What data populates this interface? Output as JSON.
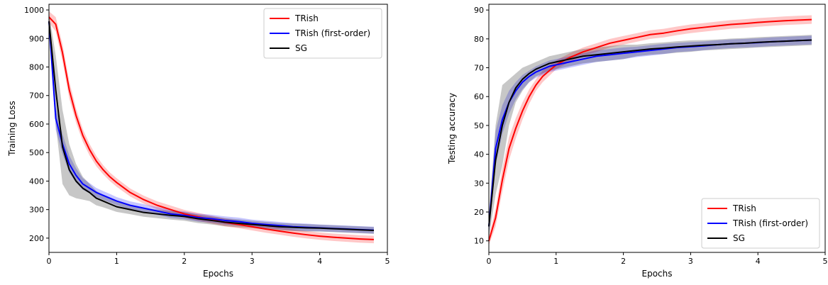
{
  "chart_data": [
    {
      "type": "line",
      "xlabel": "Epochs",
      "ylabel": "Training Loss",
      "xlim": [
        0,
        5
      ],
      "ylim": [
        150,
        1020
      ],
      "xticks": [
        0,
        1,
        2,
        3,
        4,
        5
      ],
      "yticks": [
        200,
        300,
        400,
        500,
        600,
        700,
        800,
        900,
        1000
      ],
      "grid": false,
      "legend": "top-right",
      "series": [
        {
          "name": "TRish",
          "color": "#ff0000",
          "shade": true,
          "x": [
            0,
            0.1,
            0.2,
            0.3,
            0.4,
            0.5,
            0.6,
            0.7,
            0.8,
            0.9,
            1.0,
            1.2,
            1.4,
            1.6,
            1.8,
            2.0,
            2.2,
            2.4,
            2.6,
            2.8,
            3.0,
            3.2,
            3.4,
            3.6,
            3.8,
            4.0,
            4.2,
            4.4,
            4.6,
            4.8
          ],
          "y": [
            975,
            950,
            850,
            720,
            630,
            560,
            510,
            470,
            440,
            415,
            395,
            360,
            335,
            315,
            300,
            285,
            275,
            265,
            255,
            248,
            240,
            232,
            225,
            218,
            212,
            207,
            203,
            200,
            197,
            195
          ],
          "band": [
            20,
            25,
            30,
            30,
            25,
            22,
            20,
            18,
            16,
            15,
            15,
            14,
            14,
            14,
            14,
            14,
            14,
            14,
            14,
            13,
            13,
            13,
            13,
            13,
            13,
            13,
            13,
            13,
            13,
            13
          ]
        },
        {
          "name": "TRish (first-order)",
          "color": "#0000ff",
          "shade": true,
          "x": [
            0,
            0.1,
            0.2,
            0.3,
            0.4,
            0.5,
            0.6,
            0.7,
            0.8,
            0.9,
            1.0,
            1.2,
            1.4,
            1.6,
            1.8,
            2.0,
            2.2,
            2.4,
            2.6,
            2.8,
            3.0,
            3.2,
            3.4,
            3.6,
            3.8,
            4.0,
            4.2,
            4.4,
            4.6,
            4.8
          ],
          "y": [
            960,
            620,
            530,
            460,
            420,
            390,
            375,
            360,
            350,
            340,
            330,
            315,
            305,
            295,
            285,
            280,
            272,
            268,
            262,
            258,
            252,
            248,
            244,
            240,
            238,
            236,
            234,
            232,
            230,
            228
          ],
          "band": [
            20,
            40,
            35,
            30,
            25,
            20,
            18,
            16,
            15,
            15,
            14,
            14,
            14,
            14,
            14,
            14,
            14,
            14,
            14,
            14,
            13,
            13,
            13,
            13,
            13,
            12,
            12,
            12,
            12,
            12
          ]
        },
        {
          "name": "SG",
          "color": "#000000",
          "shade": true,
          "x": [
            0,
            0.1,
            0.2,
            0.3,
            0.4,
            0.5,
            0.6,
            0.7,
            0.8,
            0.9,
            1.0,
            1.2,
            1.4,
            1.6,
            1.8,
            2.0,
            2.2,
            2.4,
            2.6,
            2.8,
            3.0,
            3.2,
            3.4,
            3.6,
            3.8,
            4.0,
            4.2,
            4.4,
            4.6,
            4.8
          ],
          "y": [
            960,
            720,
            520,
            440,
            400,
            375,
            360,
            340,
            330,
            320,
            310,
            300,
            290,
            285,
            280,
            276,
            268,
            262,
            256,
            252,
            248,
            244,
            240,
            238,
            236,
            235,
            233,
            231,
            229,
            227
          ],
          "band": [
            30,
            120,
            130,
            90,
            60,
            40,
            30,
            25,
            22,
            20,
            18,
            16,
            15,
            15,
            15,
            15,
            15,
            14,
            14,
            14,
            13,
            13,
            13,
            13,
            13,
            12,
            12,
            12,
            12,
            12
          ]
        }
      ]
    },
    {
      "type": "line",
      "xlabel": "Epochs",
      "ylabel": "Testing accuracy",
      "xlim": [
        0,
        5
      ],
      "ylim": [
        6,
        92
      ],
      "xticks": [
        0,
        1,
        2,
        3,
        4,
        5
      ],
      "yticks": [
        10,
        20,
        30,
        40,
        50,
        60,
        70,
        80,
        90
      ],
      "grid": false,
      "legend": "bottom-right",
      "series": [
        {
          "name": "TRish",
          "color": "#ff0000",
          "shade": true,
          "x": [
            0,
            0.1,
            0.2,
            0.3,
            0.4,
            0.5,
            0.6,
            0.7,
            0.8,
            0.9,
            1.0,
            1.2,
            1.4,
            1.6,
            1.8,
            2.0,
            2.2,
            2.4,
            2.6,
            2.8,
            3.0,
            3.2,
            3.4,
            3.6,
            3.8,
            4.0,
            4.2,
            4.4,
            4.6,
            4.8
          ],
          "y": [
            10,
            18,
            31,
            42,
            49,
            55,
            60,
            64,
            67,
            69,
            71,
            73.5,
            75.5,
            77,
            78.5,
            79.5,
            80.5,
            81.5,
            82,
            82.8,
            83.5,
            84,
            84.5,
            85,
            85.3,
            85.7,
            86,
            86.3,
            86.5,
            86.7
          ],
          "band": [
            1.5,
            3,
            4,
            4,
            3.5,
            3,
            2.5,
            2,
            2,
            1.8,
            1.5,
            1.5,
            1.5,
            1.5,
            1.5,
            1.5,
            1.5,
            1.5,
            1.5,
            1.5,
            1.5,
            1.5,
            1.5,
            1.5,
            1.5,
            1.5,
            1.5,
            1.5,
            1.5,
            1.5
          ]
        },
        {
          "name": "TRish (first-order)",
          "color": "#0000ff",
          "shade": true,
          "x": [
            0,
            0.1,
            0.2,
            0.3,
            0.4,
            0.5,
            0.6,
            0.7,
            0.8,
            0.9,
            1.0,
            1.2,
            1.4,
            1.6,
            1.8,
            2.0,
            2.2,
            2.4,
            2.6,
            2.8,
            3.0,
            3.2,
            3.4,
            3.6,
            3.8,
            4.0,
            4.2,
            4.4,
            4.6,
            4.8
          ],
          "y": [
            15,
            42,
            52,
            58,
            62,
            65,
            67,
            68.5,
            69.5,
            70.5,
            71,
            72,
            73,
            74,
            74.5,
            75,
            75.5,
            76,
            76.5,
            77,
            77.3,
            77.6,
            78,
            78.3,
            78.5,
            78.7,
            79,
            79.2,
            79.4,
            79.6
          ],
          "band": [
            3,
            6,
            5,
            4,
            3,
            2.5,
            2,
            2,
            2,
            2,
            2,
            2,
            2,
            2,
            2,
            2,
            1.8,
            1.8,
            1.8,
            1.6,
            1.6,
            1.5,
            1.5,
            1.5,
            1.5,
            1.5,
            1.5,
            1.5,
            1.5,
            1.5
          ]
        },
        {
          "name": "SG",
          "color": "#000000",
          "shade": true,
          "x": [
            0,
            0.1,
            0.2,
            0.3,
            0.4,
            0.5,
            0.6,
            0.7,
            0.8,
            0.9,
            1.0,
            1.2,
            1.4,
            1.6,
            1.8,
            2.0,
            2.2,
            2.4,
            2.6,
            2.8,
            3.0,
            3.2,
            3.4,
            3.6,
            3.8,
            4.0,
            4.2,
            4.4,
            4.6,
            4.8
          ],
          "y": [
            15,
            38,
            50,
            58,
            63,
            66,
            68,
            69.5,
            70.5,
            71.5,
            72,
            73,
            74,
            74.5,
            75,
            75.5,
            76,
            76.5,
            76.8,
            77.2,
            77.5,
            77.8,
            78,
            78.3,
            78.5,
            78.8,
            79,
            79.2,
            79.4,
            79.6
          ],
          "band": [
            4,
            12,
            14,
            8,
            5,
            4,
            3,
            2.5,
            2.5,
            2.5,
            2.5,
            2.5,
            2.5,
            2.5,
            2.5,
            2.5,
            2,
            2,
            2,
            2,
            2,
            1.8,
            1.8,
            1.8,
            1.8,
            1.8,
            1.8,
            1.8,
            1.8,
            1.8
          ]
        }
      ]
    }
  ]
}
